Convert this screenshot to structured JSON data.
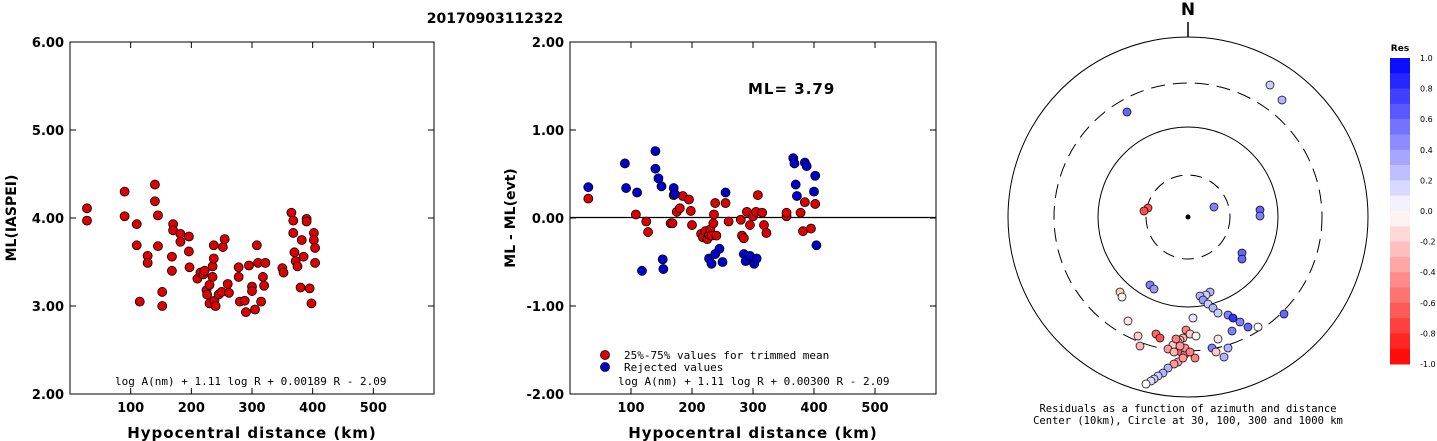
{
  "page_title": "20170903112322",
  "chart_data": [
    {
      "type": "scatter",
      "title": "",
      "xlabel": "Hypocentral distance (km)",
      "ylabel": "ML(IASPEI)",
      "xlim": [
        0,
        600
      ],
      "ylim": [
        2.0,
        6.0
      ],
      "xticks": [
        "100",
        "200",
        "300",
        "400",
        "500"
      ],
      "yticks": [
        "2.00",
        "3.00",
        "4.00",
        "5.00",
        "6.00"
      ],
      "annotation": "log A(nm) + 1.11 log R + 0.00189 R - 2.09",
      "series": [
        {
          "color": "#dd0000",
          "points": [
            [
              28,
              4.11
            ],
            [
              28,
              3.97
            ],
            [
              90,
              4.3
            ],
            [
              90,
              4.02
            ],
            [
              110,
              3.93
            ],
            [
              110,
              3.69
            ],
            [
              115,
              3.05
            ],
            [
              128,
              3.57
            ],
            [
              128,
              3.49
            ],
            [
              140,
              4.38
            ],
            [
              140,
              4.19
            ],
            [
              145,
              4.03
            ],
            [
              145,
              3.68
            ],
            [
              152,
              3.16
            ],
            [
              152,
              3.0
            ],
            [
              170,
              3.93
            ],
            [
              170,
              3.86
            ],
            [
              168,
              3.56
            ],
            [
              168,
              3.4
            ],
            [
              182,
              3.82
            ],
            [
              182,
              3.73
            ],
            [
              196,
              3.79
            ],
            [
              196,
              3.62
            ],
            [
              197,
              3.44
            ],
            [
              210,
              3.31
            ],
            [
              215,
              3.38
            ],
            [
              220,
              3.36
            ],
            [
              222,
              3.4
            ],
            [
              225,
              3.18
            ],
            [
              226,
              3.13
            ],
            [
              230,
              3.24
            ],
            [
              230,
              3.03
            ],
            [
              235,
              3.45
            ],
            [
              235,
              3.33
            ],
            [
              237,
              3.69
            ],
            [
              237,
              3.54
            ],
            [
              238,
              3.06
            ],
            [
              240,
              3.0
            ],
            [
              245,
              3.13
            ],
            [
              250,
              3.16
            ],
            [
              252,
              3.67
            ],
            [
              255,
              3.76
            ],
            [
              260,
              3.25
            ],
            [
              262,
              3.15
            ],
            [
              278,
              3.44
            ],
            [
              278,
              3.33
            ],
            [
              280,
              3.05
            ],
            [
              288,
              3.06
            ],
            [
              290,
              2.93
            ],
            [
              295,
              3.46
            ],
            [
              300,
              3.22
            ],
            [
              300,
              3.17
            ],
            [
              305,
              2.96
            ],
            [
              308,
              3.69
            ],
            [
              310,
              3.49
            ],
            [
              315,
              3.05
            ],
            [
              318,
              3.33
            ],
            [
              320,
              3.23
            ],
            [
              322,
              3.49
            ],
            [
              350,
              3.43
            ],
            [
              352,
              3.38
            ],
            [
              365,
              4.06
            ],
            [
              368,
              3.97
            ],
            [
              368,
              3.83
            ],
            [
              370,
              3.61
            ],
            [
              372,
              3.51
            ],
            [
              375,
              3.45
            ],
            [
              380,
              3.21
            ],
            [
              382,
              3.75
            ],
            [
              385,
              3.56
            ],
            [
              390,
              3.99
            ],
            [
              390,
              3.96
            ],
            [
              395,
              3.2
            ],
            [
              398,
              3.03
            ],
            [
              402,
              3.83
            ],
            [
              402,
              3.75
            ],
            [
              404,
              3.66
            ],
            [
              404,
              3.49
            ]
          ]
        }
      ]
    },
    {
      "type": "scatter",
      "title": "",
      "xlabel": "Hypocentral distance (km)",
      "ylabel": "ML - ML(evt)",
      "xlim": [
        0,
        600
      ],
      "ylim": [
        -2.0,
        2.0
      ],
      "xticks": [
        "100",
        "200",
        "300",
        "400",
        "500"
      ],
      "yticks": [
        "-2.00",
        "-1.00",
        "0.00",
        "1.00",
        "2.00"
      ],
      "ml_label": "ML= 3.79",
      "annotation": "log A(nm) + 1.11 log R + 0.00300 R - 2.09",
      "legend": [
        {
          "label": "25%-75% values for trimmed mean",
          "color": "#dd0000"
        },
        {
          "label": "Rejected values",
          "color": "#0000cc"
        }
      ],
      "series": [
        {
          "name": "25%-75% values for trimmed mean",
          "color": "#dd0000",
          "points": [
            [
              30,
              0.22
            ],
            [
              108,
              0.04
            ],
            [
              125,
              -0.04
            ],
            [
              128,
              -0.16
            ],
            [
              165,
              -0.06
            ],
            [
              168,
              -0.06
            ],
            [
              170,
              0.26
            ],
            [
              175,
              0.07
            ],
            [
              180,
              0.11
            ],
            [
              185,
              0.25
            ],
            [
              195,
              0.21
            ],
            [
              198,
              0.08
            ],
            [
              200,
              -0.08
            ],
            [
              215,
              -0.18
            ],
            [
              218,
              -0.22
            ],
            [
              222,
              -0.15
            ],
            [
              225,
              -0.24
            ],
            [
              228,
              -0.19
            ],
            [
              230,
              -0.13
            ],
            [
              232,
              -0.2
            ],
            [
              235,
              -0.06
            ],
            [
              236,
              0.04
            ],
            [
              238,
              0.17
            ],
            [
              240,
              -0.2
            ],
            [
              255,
              0.17
            ],
            [
              260,
              -0.04
            ],
            [
              280,
              -0.02
            ],
            [
              282,
              -0.2
            ],
            [
              285,
              -0.23
            ],
            [
              290,
              0.07
            ],
            [
              295,
              -0.08
            ],
            [
              300,
              0.02
            ],
            [
              305,
              0.07
            ],
            [
              308,
              0.26
            ],
            [
              315,
              0.06
            ],
            [
              318,
              -0.08
            ],
            [
              322,
              -0.17
            ],
            [
              355,
              0.02
            ],
            [
              355,
              0.06
            ],
            [
              378,
              0.06
            ],
            [
              382,
              -0.15
            ],
            [
              385,
              0.18
            ],
            [
              395,
              -0.12
            ],
            [
              402,
              0.16
            ]
          ]
        },
        {
          "name": "Rejected values",
          "color": "#0000cc",
          "points": [
            [
              30,
              0.35
            ],
            [
              90,
              0.62
            ],
            [
              92,
              0.34
            ],
            [
              110,
              0.29
            ],
            [
              118,
              -0.6
            ],
            [
              140,
              0.76
            ],
            [
              140,
              0.56
            ],
            [
              145,
              0.45
            ],
            [
              150,
              0.36
            ],
            [
              152,
              -0.47
            ],
            [
              153,
              -0.58
            ],
            [
              170,
              0.34
            ],
            [
              172,
              0.27
            ],
            [
              228,
              -0.46
            ],
            [
              232,
              -0.52
            ],
            [
              238,
              -0.41
            ],
            [
              245,
              -0.35
            ],
            [
              250,
              -0.5
            ],
            [
              255,
              0.29
            ],
            [
              285,
              -0.41
            ],
            [
              288,
              -0.49
            ],
            [
              295,
              -0.43
            ],
            [
              302,
              -0.52
            ],
            [
              306,
              -0.46
            ],
            [
              366,
              0.68
            ],
            [
              368,
              0.62
            ],
            [
              370,
              0.38
            ],
            [
              372,
              0.25
            ],
            [
              385,
              0.63
            ],
            [
              388,
              0.59
            ],
            [
              400,
              0.3
            ],
            [
              402,
              0.48
            ],
            [
              404,
              -0.31
            ]
          ]
        }
      ]
    }
  ],
  "polar": {
    "north_label": "N",
    "caption_line1": "Residuals as a function of azimuth and distance",
    "caption_line2": "Center (10km), Circle at 30, 100, 300 and 1000 km",
    "colorbar_title": "Res",
    "colorbar_labels": [
      "1.0",
      "0.8",
      "0.6",
      "0.4",
      "0.2",
      "0.0",
      "-0.2",
      "-0.4",
      "-0.6",
      "-0.8",
      "-1.0"
    ],
    "colors": {
      "positive": "#0000ff",
      "negative": "#ff0000"
    },
    "stations": [
      [
        22,
        292,
        0.3
      ],
      [
        18,
        295,
        0.2
      ],
      [
        5,
        318,
        0.1
      ],
      [
        -2,
        330,
        -0.5
      ],
      [
        2,
        334,
        -0.2
      ],
      [
        8,
        336,
        -0.05
      ],
      [
        -5,
        338,
        -0.3
      ],
      [
        -8,
        340,
        -0.3
      ],
      [
        -10,
        342,
        -0.2
      ],
      [
        -15,
        345,
        -0.2
      ],
      [
        12,
        296,
        0.3
      ],
      [
        15,
        300,
        0.4
      ],
      [
        20,
        304,
        0.2
      ],
      [
        25,
        308,
        0.3
      ],
      [
        30,
        313,
        0.2
      ],
      [
        40,
        315,
        0.5
      ],
      [
        45,
        318,
        0.8
      ],
      [
        52,
        322,
        0.5
      ],
      [
        60,
        327,
        0.6
      ],
      [
        44,
        331,
        0.5
      ],
      [
        -32,
        334,
        -0.6
      ],
      [
        -28,
        338,
        -0.7
      ],
      [
        -7,
        352,
        -0.6
      ],
      [
        -3,
        354,
        -0.55
      ],
      [
        7,
        358,
        -0.5
      ],
      [
        -10,
        362,
        -0.4
      ],
      [
        -14,
        364,
        -0.4
      ],
      [
        -20,
        368,
        0.3
      ],
      [
        -25,
        373,
        0.3
      ],
      [
        -30,
        376,
        0.2
      ],
      [
        -34,
        379,
        0.2
      ],
      [
        -37,
        381,
        0.15
      ],
      [
        -42,
        384,
        0.0
      ],
      [
        82,
        85,
        0.2
      ],
      [
        94,
        100,
        0.3
      ],
      [
        -61,
        112,
        0.6
      ],
      [
        26,
        207,
        0.5
      ],
      [
        -40,
        208,
        -0.7
      ],
      [
        -44,
        211,
        -0.7
      ],
      [
        72,
        210,
        0.6
      ],
      [
        72,
        216,
        0.5
      ],
      [
        54,
        253,
        0.6
      ],
      [
        54,
        259,
        0.6
      ],
      [
        -68,
        292,
        -0.2
      ],
      [
        -66,
        297,
        -0.05
      ],
      [
        -38,
        285,
        0.5
      ],
      [
        -34,
        289,
        0.4
      ],
      [
        -60,
        321,
        -0.1
      ],
      [
        -50,
        336,
        -0.2
      ],
      [
        -48,
        346,
        -0.3
      ],
      [
        -12,
        339,
        -0.5
      ],
      [
        -3,
        348,
        -0.45
      ],
      [
        2,
        352,
        -0.5
      ],
      [
        -8,
        346,
        -0.4
      ],
      [
        -20,
        349,
        -0.4
      ],
      [
        -14,
        352,
        -0.3
      ],
      [
        -5,
        358,
        -0.4
      ],
      [
        40,
        348,
        0.3
      ],
      [
        70,
        327,
        0.0
      ],
      [
        96,
        314,
        0.6
      ],
      [
        30,
        339,
        -0.1
      ],
      [
        24,
        348,
        0.5
      ],
      [
        28,
        352,
        -0.2
      ],
      [
        36,
        357,
        0.3
      ]
    ]
  }
}
